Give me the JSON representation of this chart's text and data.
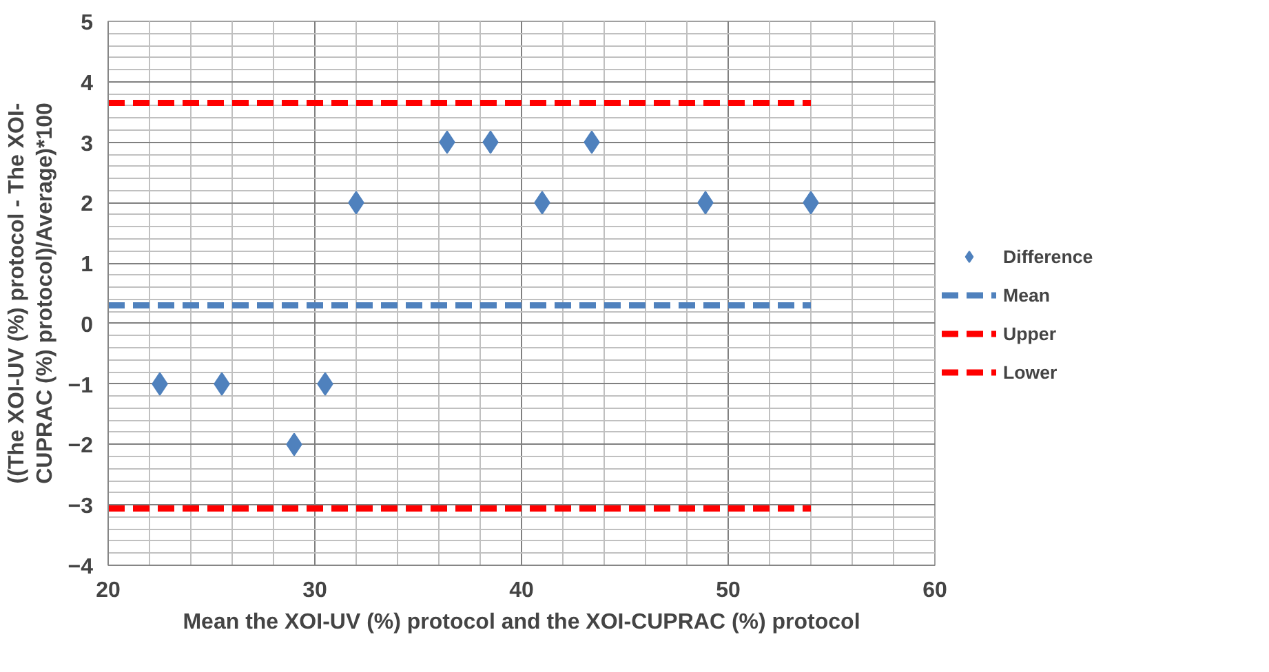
{
  "chart_data": {
    "type": "scatter",
    "xlabel": "Mean the XOI-UV (%) protocol and the XOI-CUPRAC (%) protocol",
    "ylabel": "((The XOI-UV (%) protocol - The XOI-CUPRAC (%) protocol)/Average)*100",
    "xlim": [
      20,
      60
    ],
    "xticks": [
      20,
      30,
      40,
      50,
      60
    ],
    "ylim": [
      -4,
      5
    ],
    "yticks": [
      -4,
      -3,
      -2,
      -1,
      0,
      1,
      2,
      3,
      4,
      5
    ],
    "grid": true,
    "legend": "right",
    "series": [
      {
        "name": "Difference",
        "marker": "diamond",
        "color": "#4f81bd",
        "x": [
          22.5,
          25.5,
          29.0,
          30.5,
          32.0,
          36.4,
          38.5,
          41.0,
          43.4,
          48.9,
          54.0
        ],
        "values": [
          -1,
          -1,
          -2,
          -1,
          2,
          3,
          3,
          2,
          3,
          2,
          2
        ]
      },
      {
        "name": "Mean",
        "type": "line",
        "marker": "none",
        "line_style": "dashed",
        "color": "#4f81bd",
        "x": [
          20,
          54
        ],
        "values": [
          0.3,
          0.3
        ]
      },
      {
        "name": "Upper",
        "type": "line",
        "marker": "none",
        "line_style": "dashed",
        "color": "#ff0000",
        "x": [
          20,
          54
        ],
        "values": [
          3.65,
          3.65
        ]
      },
      {
        "name": "Lower",
        "type": "line",
        "marker": "none",
        "line_style": "dashed",
        "color": "#ff0000",
        "x": [
          20,
          54
        ],
        "values": [
          -3.06,
          -3.06
        ]
      }
    ]
  }
}
